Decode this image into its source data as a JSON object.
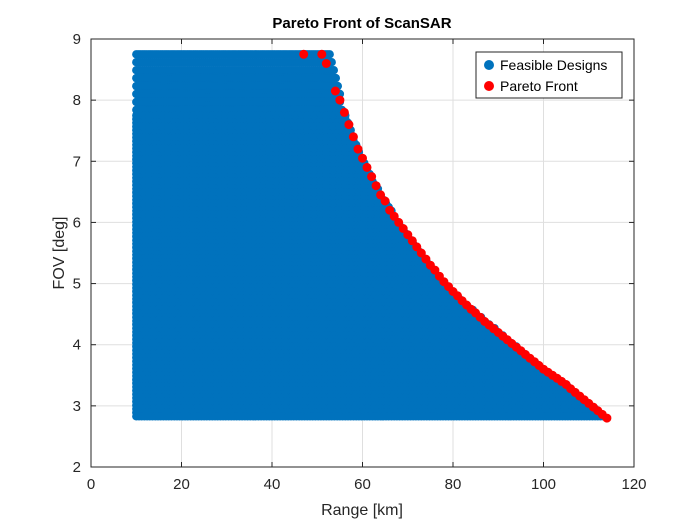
{
  "chart_data": {
    "type": "scatter",
    "title": "Pareto Front of ScanSAR",
    "xlabel": "Range [km]",
    "ylabel": "FOV [deg]",
    "xlim": [
      0,
      120
    ],
    "ylim": [
      2,
      9
    ],
    "xticks": [
      0,
      20,
      40,
      60,
      80,
      100,
      120
    ],
    "yticks": [
      2,
      3,
      4,
      5,
      6,
      7,
      8,
      9
    ],
    "grid": true,
    "legend_position": "top-right",
    "series": [
      {
        "name": "Feasible Designs",
        "color": "#0072BD",
        "region": {
          "x_min": 10,
          "fov_min": 2.8,
          "fov_max": 8.75,
          "upper_boundary": [
            [
              10,
              8.75
            ],
            [
              53,
              8.75
            ],
            [
              54,
              8.4
            ],
            [
              55,
              8.1
            ],
            [
              56,
              7.8
            ],
            [
              57.5,
              7.5
            ],
            [
              59,
              7.2
            ],
            [
              61,
              6.9
            ],
            [
              63,
              6.6
            ],
            [
              65.5,
              6.3
            ],
            [
              68,
              6.0
            ],
            [
              71,
              5.7
            ],
            [
              74,
              5.4
            ],
            [
              77,
              5.1
            ],
            [
              80,
              4.85
            ],
            [
              84,
              4.6
            ],
            [
              88,
              4.35
            ],
            [
              92,
              4.1
            ],
            [
              96,
              3.85
            ],
            [
              100,
              3.6
            ],
            [
              104,
              3.4
            ],
            [
              108,
              3.15
            ],
            [
              111,
              2.98
            ],
            [
              114,
              2.8
            ]
          ]
        }
      },
      {
        "name": "Pareto Front",
        "color": "#FF0000",
        "points": [
          [
            47,
            8.75
          ],
          [
            51,
            8.75
          ],
          [
            52,
            8.6
          ],
          [
            54,
            8.15
          ],
          [
            55,
            8.0
          ],
          [
            56,
            7.8
          ],
          [
            57,
            7.6
          ],
          [
            58,
            7.4
          ],
          [
            59,
            7.2
          ],
          [
            60,
            7.05
          ],
          [
            61,
            6.9
          ],
          [
            62,
            6.75
          ],
          [
            63,
            6.6
          ],
          [
            64,
            6.45
          ],
          [
            65,
            6.35
          ],
          [
            66,
            6.2
          ],
          [
            67,
            6.1
          ],
          [
            68,
            6.0
          ],
          [
            69,
            5.9
          ],
          [
            70,
            5.8
          ],
          [
            71,
            5.7
          ],
          [
            72,
            5.6
          ],
          [
            73,
            5.5
          ],
          [
            74,
            5.4
          ],
          [
            75,
            5.3
          ],
          [
            76,
            5.22
          ],
          [
            77,
            5.12
          ],
          [
            78,
            5.03
          ],
          [
            79,
            4.95
          ],
          [
            80,
            4.87
          ],
          [
            81,
            4.8
          ],
          [
            82,
            4.72
          ],
          [
            83,
            4.65
          ],
          [
            84,
            4.58
          ],
          [
            85,
            4.52
          ],
          [
            86,
            4.45
          ],
          [
            87,
            4.38
          ],
          [
            88,
            4.32
          ],
          [
            89,
            4.26
          ],
          [
            90,
            4.2
          ],
          [
            91,
            4.14
          ],
          [
            92,
            4.08
          ],
          [
            93,
            4.02
          ],
          [
            94,
            3.96
          ],
          [
            95,
            3.9
          ],
          [
            96,
            3.84
          ],
          [
            97,
            3.78
          ],
          [
            98,
            3.72
          ],
          [
            99,
            3.66
          ],
          [
            100,
            3.6
          ],
          [
            101,
            3.55
          ],
          [
            102,
            3.5
          ],
          [
            103,
            3.45
          ],
          [
            104,
            3.4
          ],
          [
            105,
            3.35
          ],
          [
            106,
            3.28
          ],
          [
            107,
            3.22
          ],
          [
            108,
            3.16
          ],
          [
            109,
            3.1
          ],
          [
            110,
            3.04
          ],
          [
            111,
            2.98
          ],
          [
            112,
            2.92
          ],
          [
            113,
            2.86
          ],
          [
            114,
            2.8
          ]
        ]
      }
    ]
  }
}
